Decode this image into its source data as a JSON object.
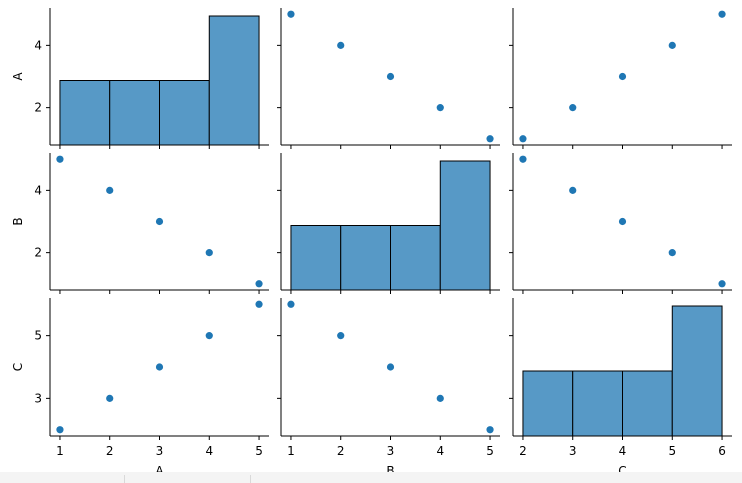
{
  "chart_data": {
    "type": "scatter",
    "kind": "pairplot",
    "variables": [
      "A",
      "B",
      "C"
    ],
    "data": {
      "A": [
        1,
        2,
        3,
        4,
        5
      ],
      "B": [
        5,
        4,
        3,
        2,
        1
      ],
      "C": [
        2,
        3,
        4,
        5,
        6
      ]
    },
    "diag_kind": "histogram",
    "histogram_bins": 4,
    "axes": {
      "A": {
        "ticks": [
          1,
          2,
          3,
          4,
          5
        ],
        "range": [
          0.8,
          5.2
        ]
      },
      "B": {
        "ticks": [
          1,
          2,
          3,
          4,
          5
        ],
        "range": [
          0.8,
          5.2
        ]
      },
      "C": {
        "ticks": [
          2,
          3,
          4,
          5,
          6
        ],
        "range": [
          1.8,
          6.2
        ]
      }
    },
    "grid": false,
    "legend": "none",
    "colors": {
      "points": "#1f77b4",
      "hist_fill": "#5799c6",
      "hist_edge": "#000000"
    }
  }
}
